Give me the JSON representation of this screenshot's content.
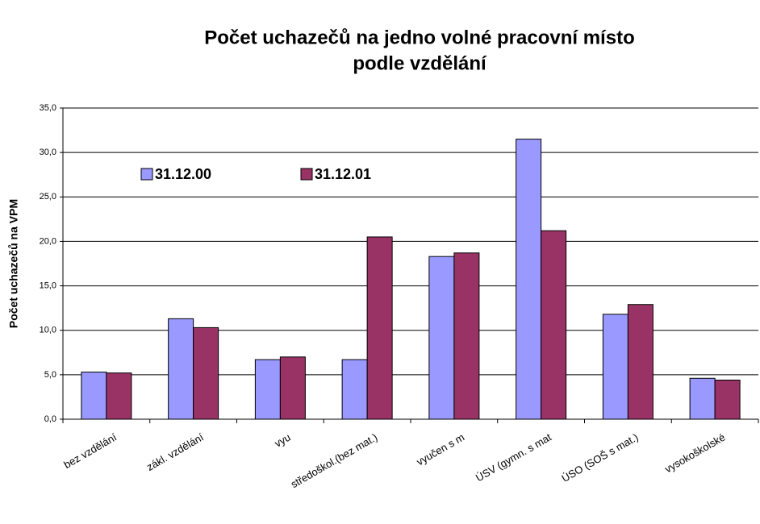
{
  "chart_data": {
    "type": "bar",
    "title": [
      "Počet uchazečů na jedno volné pracovní místo",
      "podle vzdělání"
    ],
    "y_label": "Počet uchazečů na VPM",
    "categories": [
      "bez vzdělání",
      "zákl. vzdělání",
      "vyu",
      "středoškol.(bez mat.)",
      "vyučen s m",
      "ÚSV (gymn. s mat",
      "ÚSO (SOŠ s mat.)",
      "vysokoškolské"
    ],
    "series": [
      {
        "name": "31.12.00",
        "color": "#9999ff",
        "values": [
          5.3,
          11.3,
          6.7,
          6.7,
          18.3,
          31.5,
          11.8,
          4.6
        ]
      },
      {
        "name": "31.12.01",
        "color": "#993366",
        "values": [
          5.2,
          10.3,
          7.0,
          20.5,
          18.7,
          21.2,
          12.9,
          4.4
        ]
      }
    ],
    "ylim": [
      0,
      35
    ],
    "yticks": [
      {
        "value": 0,
        "label": "0,0"
      },
      {
        "value": 5,
        "label": "5,0"
      },
      {
        "value": 10,
        "label": "10,0"
      },
      {
        "value": 15,
        "label": "15,0"
      },
      {
        "value": 20,
        "label": "20,0"
      },
      {
        "value": 25,
        "label": "25,0"
      },
      {
        "value": 30,
        "label": "30,0"
      },
      {
        "value": 35,
        "label": "35,0"
      }
    ],
    "grid": true,
    "legend": "top-left"
  }
}
